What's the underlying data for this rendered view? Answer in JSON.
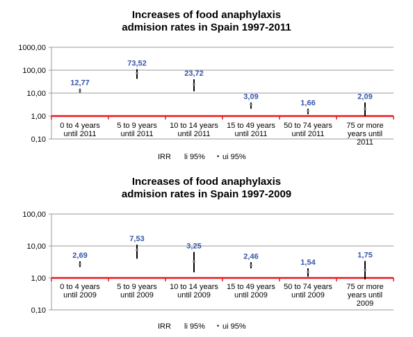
{
  "charts": [
    {
      "title_line1": "Increases of food anaphylaxis",
      "title_line2": "admision rates in Spain 1997-2011",
      "legend": {
        "irr": "IRR",
        "li": "li 95%",
        "ui": "ui 95%"
      }
    },
    {
      "title_line1": "Increases of food anaphylaxis",
      "title_line2": "admision rates in Spain 1997-2009",
      "legend": {
        "irr": "IRR",
        "li": "li 95%",
        "ui": "ui 95%"
      }
    }
  ],
  "colors": {
    "baseline": "#e8151b",
    "label": "#3355aa",
    "grid": "#999999",
    "bar": "#000000"
  },
  "chart_data": [
    {
      "type": "scatter",
      "title": "Increases of food anaphylaxis admision rates in Spain 1997-2011",
      "yscale": "log",
      "ylim": [
        0.1,
        1000
      ],
      "yticks": [
        "0,10",
        "1,00",
        "10,00",
        "100,00",
        "1000,00"
      ],
      "grid": true,
      "legend_position": "bottom",
      "categories": [
        [
          "0 to 4 years",
          "until 2011"
        ],
        [
          "5 to 9 years",
          "until 2011"
        ],
        [
          "10 to 14 years",
          "until 2011"
        ],
        [
          "15 to 49 years",
          "until  2011"
        ],
        [
          "50 to 74 years",
          "until 2011"
        ],
        [
          "75 or more",
          "years until",
          "2011"
        ]
      ],
      "irr": [
        12.77,
        73.52,
        23.72,
        3.09,
        1.66,
        2.09
      ],
      "irr_labels": [
        "12,77",
        "73,52",
        "23,72",
        "3,09",
        "1,66",
        "2,09"
      ],
      "li": [
        10.5,
        42.0,
        12.0,
        2.1,
        1.2,
        1.0
      ],
      "ui": [
        15.5,
        110.0,
        40.0,
        3.9,
        2.1,
        3.9
      ],
      "series": [
        {
          "name": "IRR"
        },
        {
          "name": "li 95%"
        },
        {
          "name": "ui 95%"
        }
      ]
    },
    {
      "type": "scatter",
      "title": "Increases of food anaphylaxis admision rates in Spain 1997-2009",
      "yscale": "log",
      "ylim": [
        0.1,
        100
      ],
      "yticks": [
        "0,10",
        "1,00",
        "10,00",
        "100,00"
      ],
      "grid": true,
      "legend_position": "bottom",
      "categories": [
        [
          "0 to 4 years",
          "until 2009"
        ],
        [
          "5 to 9 years",
          "until 2009"
        ],
        [
          "10 to 14 years",
          "until 2009"
        ],
        [
          "15 to 49 years",
          "until 2009"
        ],
        [
          "50 to 74 years",
          "until 2009"
        ],
        [
          "75 or more",
          "years until",
          "2009"
        ]
      ],
      "irr": [
        2.69,
        7.53,
        3.25,
        2.46,
        1.54,
        1.75
      ],
      "irr_labels": [
        "2,69",
        "7,53",
        "3,25",
        "2,46",
        "1,54",
        "1,75"
      ],
      "li": [
        2.2,
        4.0,
        1.5,
        2.0,
        1.1,
        0.9
      ],
      "ui": [
        3.3,
        11.0,
        6.5,
        3.1,
        2.0,
        3.4
      ],
      "series": [
        {
          "name": "IRR"
        },
        {
          "name": "li 95%"
        },
        {
          "name": "ui 95%"
        }
      ]
    }
  ]
}
